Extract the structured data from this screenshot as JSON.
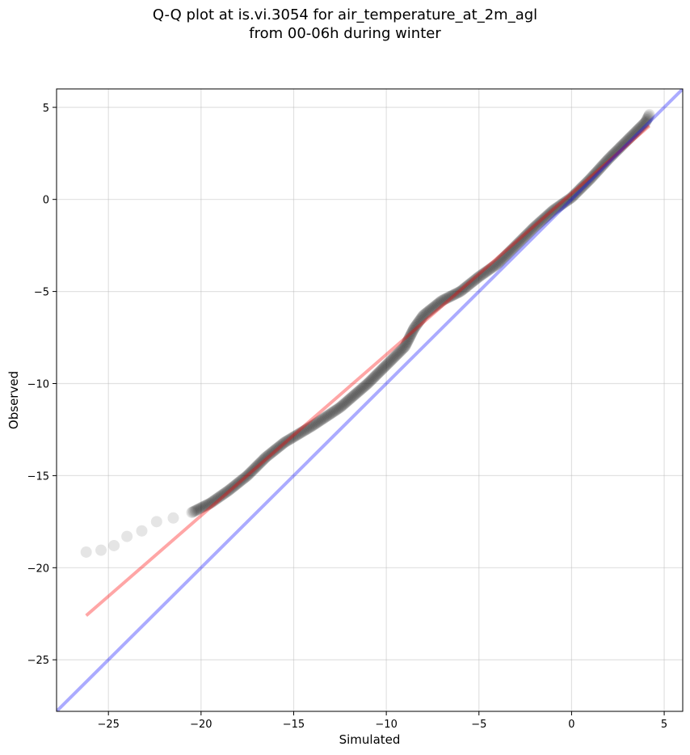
{
  "chart_data": {
    "type": "scatter",
    "title": "Q-Q plot at is.vi.3054 for air_temperature_at_2m_agl",
    "subtitle": "from 00-06h during winter",
    "xlabel": "Simulated",
    "ylabel": "Observed",
    "xlim": [
      -27.8,
      6.0
    ],
    "ylim": [
      -27.8,
      6.0
    ],
    "xticks": [
      -25,
      -20,
      -15,
      -10,
      -5,
      0,
      5
    ],
    "yticks": [
      -25,
      -20,
      -15,
      -10,
      -5,
      0,
      5
    ],
    "xtick_labels": [
      "−25",
      "−20",
      "−15",
      "−10",
      "−5",
      "0",
      "5"
    ],
    "ytick_labels": [
      "−25",
      "−20",
      "−15",
      "−10",
      "−5",
      "0",
      "5"
    ],
    "grid": true,
    "points": {
      "color": "#000000",
      "opacity": 0.1,
      "quantile_path": [
        [
          -26.2,
          -19.15
        ],
        [
          -25.4,
          -19.05
        ],
        [
          -24.7,
          -18.8
        ],
        [
          -24.0,
          -18.3
        ],
        [
          -23.2,
          -18.0
        ],
        [
          -22.4,
          -17.5
        ],
        [
          -21.5,
          -17.3
        ],
        [
          -20.5,
          -17.0
        ],
        [
          -19.5,
          -16.5
        ],
        [
          -18.5,
          -15.8
        ],
        [
          -17.5,
          -15.0
        ],
        [
          -16.5,
          -14.0
        ],
        [
          -15.5,
          -13.2
        ],
        [
          -14.0,
          -12.3
        ],
        [
          -12.5,
          -11.3
        ],
        [
          -11.0,
          -10.0
        ],
        [
          -10.0,
          -9.0
        ],
        [
          -9.0,
          -8.0
        ],
        [
          -8.5,
          -7.0
        ],
        [
          -8.0,
          -6.3
        ],
        [
          -7.0,
          -5.5
        ],
        [
          -6.0,
          -5.0
        ],
        [
          -5.0,
          -4.2
        ],
        [
          -4.0,
          -3.5
        ],
        [
          -3.0,
          -2.5
        ],
        [
          -2.0,
          -1.5
        ],
        [
          -1.0,
          -0.6
        ],
        [
          0.0,
          0.1
        ],
        [
          1.0,
          1.1
        ],
        [
          2.0,
          2.2
        ],
        [
          3.0,
          3.2
        ],
        [
          3.5,
          3.7
        ],
        [
          4.0,
          4.2
        ],
        [
          4.2,
          4.6
        ]
      ]
    },
    "regression_line": {
      "color": "#ff0000",
      "opacity": 0.35,
      "x": [
        -26.2,
        4.2
      ],
      "y": [
        -22.6,
        4.0
      ]
    },
    "identity_line": {
      "color": "#0000ff",
      "opacity": 0.33,
      "x": [
        -27.8,
        6.0
      ],
      "y": [
        -27.8,
        6.0
      ]
    }
  }
}
